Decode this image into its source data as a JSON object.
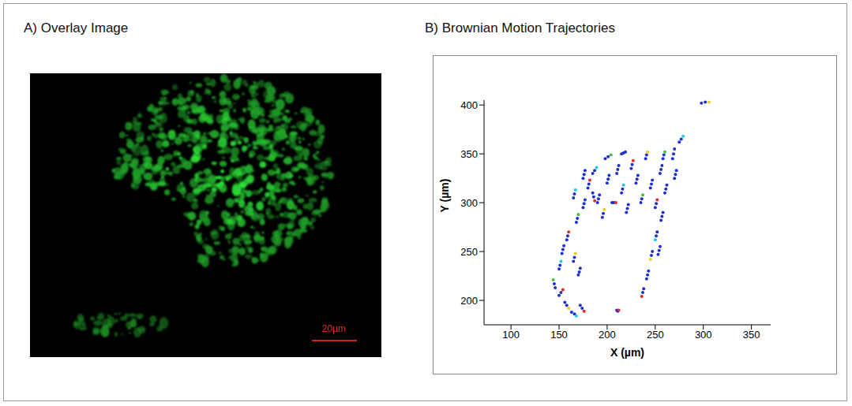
{
  "figure": {
    "panel_a": {
      "title": "A) Overlay Image",
      "scale_bar_label": "20µm"
    }
  },
  "chart_data": {
    "type": "scatter",
    "title": "B) Brownian Motion Trajectories",
    "x_label": "X (µm)",
    "y_label": "Y (µm)",
    "xlim": [
      72,
      370
    ],
    "ylim": [
      175,
      405
    ],
    "xticks": [
      100,
      150,
      200,
      250,
      300,
      350
    ],
    "yticks": [
      200,
      250,
      300,
      350,
      400
    ],
    "marker": "circle",
    "x": [
      146,
      145,
      144,
      150,
      152,
      154,
      156,
      158,
      160,
      163,
      166,
      168,
      150,
      151,
      152,
      153,
      154,
      155,
      158,
      159,
      160,
      165,
      166,
      167,
      170,
      171,
      172,
      172,
      174,
      176,
      168,
      169,
      170,
      175,
      176,
      177,
      180,
      181,
      182,
      185,
      187,
      189,
      190,
      191,
      192,
      195,
      196,
      197,
      200,
      201,
      202,
      198,
      201,
      204,
      205,
      207,
      209,
      210,
      211,
      212,
      215,
      216,
      217,
      220,
      221,
      222,
      225,
      226,
      227,
      230,
      231,
      232,
      235,
      236,
      237,
      240,
      241,
      242,
      245,
      246,
      247,
      250,
      251,
      252,
      255,
      256,
      257,
      258,
      259,
      260,
      185,
      186,
      187,
      175,
      176,
      177,
      165,
      166,
      167,
      215,
      217,
      219,
      260,
      261,
      262,
      258,
      257,
      256,
      252,
      251,
      250,
      247,
      246,
      245,
      243,
      242,
      241,
      238,
      237,
      236,
      255,
      254,
      253,
      268,
      269,
      270,
      275,
      277,
      279,
      298,
      302,
      306,
      210,
      211,
      212,
      270,
      271,
      272
    ],
    "y": [
      213,
      217,
      221,
      205,
      208,
      211,
      198,
      195,
      192,
      188,
      186,
      184,
      232,
      236,
      240,
      248,
      252,
      256,
      262,
      266,
      270,
      240,
      244,
      248,
      226,
      229,
      233,
      195,
      192,
      189,
      280,
      284,
      288,
      295,
      299,
      303,
      315,
      319,
      323,
      330,
      333,
      336,
      300,
      304,
      308,
      285,
      289,
      293,
      320,
      324,
      328,
      345,
      347,
      349,
      300,
      300,
      300,
      330,
      334,
      338,
      310,
      314,
      318,
      290,
      294,
      298,
      335,
      339,
      343,
      320,
      324,
      328,
      300,
      304,
      308,
      345,
      349,
      352,
      315,
      319,
      323,
      295,
      299,
      303,
      330,
      334,
      338,
      345,
      349,
      352,
      310,
      306,
      302,
      325,
      329,
      333,
      305,
      309,
      313,
      350,
      351,
      352,
      310,
      314,
      318,
      290,
      286,
      282,
      270,
      266,
      262,
      250,
      246,
      242,
      230,
      226,
      222,
      212,
      208,
      204,
      255,
      251,
      247,
      345,
      350,
      355,
      362,
      365,
      368,
      402,
      403,
      403,
      190,
      189,
      190,
      325,
      329,
      333
    ],
    "colors": [
      "#1f2fcf",
      "#1f2fcf",
      "#40c040",
      "#1f2fcf",
      "#1f2fcf",
      "#e02828",
      "#1f2fcf",
      "#1f2fcf",
      "#e8d020",
      "#1f2fcf",
      "#1f2fcf",
      "#1ec8e8",
      "#1f2fcf",
      "#1f2fcf",
      "#1ec8e8",
      "#1f2fcf",
      "#1f2fcf",
      "#1f2fcf",
      "#1f2fcf",
      "#1f2fcf",
      "#e02828",
      "#1f2fcf",
      "#1f2fcf",
      "#e8d020",
      "#1f2fcf",
      "#1f2fcf",
      "#1f2fcf",
      "#1f2fcf",
      "#1f2fcf",
      "#e02828",
      "#1f2fcf",
      "#1f2fcf",
      "#40c040",
      "#1f2fcf",
      "#1f2fcf",
      "#1f2fcf",
      "#1f2fcf",
      "#1f2fcf",
      "#e02828",
      "#1f2fcf",
      "#1f2fcf",
      "#1ec8e8",
      "#1f2fcf",
      "#1f2fcf",
      "#1f2fcf",
      "#1f2fcf",
      "#1f2fcf",
      "#e8d020",
      "#1f2fcf",
      "#1f2fcf",
      "#1f2fcf",
      "#1f2fcf",
      "#1f2fcf",
      "#40c040",
      "#1f2fcf",
      "#1f2fcf",
      "#e02828",
      "#1f2fcf",
      "#1f2fcf",
      "#1f2fcf",
      "#1f2fcf",
      "#1f2fcf",
      "#1ec8e8",
      "#1f2fcf",
      "#1f2fcf",
      "#1f2fcf",
      "#1f2fcf",
      "#1f2fcf",
      "#e02828",
      "#1f2fcf",
      "#1f2fcf",
      "#1f2fcf",
      "#1f2fcf",
      "#1f2fcf",
      "#40c040",
      "#1f2fcf",
      "#1f2fcf",
      "#e8d020",
      "#1f2fcf",
      "#1f2fcf",
      "#1f2fcf",
      "#1f2fcf",
      "#1f2fcf",
      "#e02828",
      "#1f2fcf",
      "#1f2fcf",
      "#1f2fcf",
      "#1f2fcf",
      "#1f2fcf",
      "#40c040",
      "#1f2fcf",
      "#1f2fcf",
      "#e02828",
      "#1f2fcf",
      "#1f2fcf",
      "#1f2fcf",
      "#1f2fcf",
      "#1f2fcf",
      "#1ec8e8",
      "#1f2fcf",
      "#1f2fcf",
      "#1f2fcf",
      "#1f2fcf",
      "#1f2fcf",
      "#1f2fcf",
      "#1f2fcf",
      "#1f2fcf",
      "#1f2fcf",
      "#1f2fcf",
      "#1f2fcf",
      "#1ec8e8",
      "#1f2fcf",
      "#1f2fcf",
      "#e8d020",
      "#1f2fcf",
      "#1f2fcf",
      "#1f2fcf",
      "#1f2fcf",
      "#1f2fcf",
      "#e02828",
      "#1f2fcf",
      "#1f2fcf",
      "#1f2fcf",
      "#1f2fcf",
      "#1f2fcf",
      "#1f2fcf",
      "#1f2fcf",
      "#1f2fcf",
      "#1ec8e8",
      "#1f2fcf",
      "#1f2fcf",
      "#e8d020",
      "#1f2fcf",
      "#1f2fcf",
      "#e02828",
      "#1f2fcf",
      "#1f2fcf",
      "#1f2fcf"
    ]
  }
}
